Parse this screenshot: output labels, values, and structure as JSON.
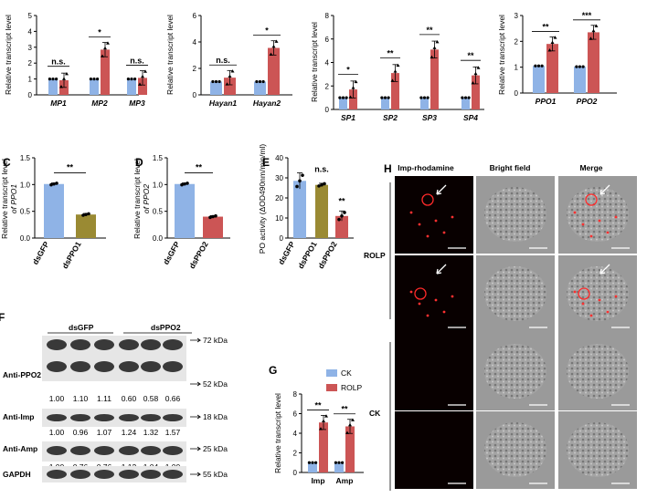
{
  "colors": {
    "blue": "#8fb3e6",
    "red": "#cc5555",
    "olive": "#9a8a33",
    "dark_olive": "#8a7a30"
  },
  "chart_data": [
    {
      "id": "mp",
      "type": "bar",
      "ylabel": "Relative transcript level",
      "yticks": [
        0,
        1,
        2,
        3,
        4,
        5
      ],
      "ylim": [
        0,
        5
      ],
      "categories": [
        "MP1",
        "MP2",
        "MP3"
      ],
      "series": [
        {
          "name": "CK",
          "values": [
            1.0,
            1.0,
            1.0
          ]
        },
        {
          "name": "ROLP",
          "values": [
            0.92,
            2.85,
            1.07
          ]
        }
      ],
      "sig": [
        "n.s.",
        "*",
        "n.s."
      ]
    },
    {
      "id": "hayan",
      "type": "bar",
      "ylabel": "Relative transcript level",
      "yticks": [
        0,
        2,
        4,
        6
      ],
      "ylim": [
        0,
        6
      ],
      "categories": [
        "Hayan1",
        "Hayan2"
      ],
      "series": [
        {
          "name": "CK",
          "values": [
            1.0,
            1.0
          ]
        },
        {
          "name": "ROLP",
          "values": [
            1.3,
            3.55
          ]
        }
      ],
      "sig": [
        "n.s.",
        "*"
      ]
    },
    {
      "id": "sp",
      "type": "bar",
      "ylabel": "Relative transcript level",
      "yticks": [
        0,
        2,
        4,
        6,
        8
      ],
      "ylim": [
        0,
        8
      ],
      "categories": [
        "SP1",
        "SP2",
        "SP3",
        "SP4"
      ],
      "series": [
        {
          "name": "CK",
          "values": [
            1.0,
            1.0,
            1.0,
            1.0
          ]
        },
        {
          "name": "ROLP",
          "values": [
            1.7,
            3.1,
            5.1,
            2.9
          ]
        }
      ],
      "sig": [
        "*",
        "**",
        "**",
        "**"
      ]
    },
    {
      "id": "ppo",
      "type": "bar",
      "ylabel": "Relative transcript level",
      "yticks": [
        0,
        1,
        2,
        3
      ],
      "ylim": [
        0,
        3
      ],
      "categories": [
        "PPO1",
        "PPO2"
      ],
      "series": [
        {
          "name": "CK",
          "values": [
            1.05,
            1.02
          ]
        },
        {
          "name": "ROLP",
          "values": [
            1.9,
            2.35
          ]
        }
      ],
      "sig": [
        "**",
        "***"
      ]
    },
    {
      "id": "c",
      "type": "bar",
      "label": "C",
      "ylabel": "Relative transcript level",
      "ylabel2": "of PPO1",
      "yticks": [
        0.0,
        0.5,
        1.0,
        1.5
      ],
      "ylim": [
        0,
        1.5
      ],
      "categories": [
        "dsGFP",
        "dsPPO1"
      ],
      "values": [
        1.01,
        0.44
      ],
      "sig": [
        "**"
      ]
    },
    {
      "id": "d",
      "type": "bar",
      "label": "D",
      "ylabel": "Relative transcript level",
      "ylabel2": "of PPO2",
      "yticks": [
        0.0,
        0.5,
        1.0,
        1.5
      ],
      "ylim": [
        0,
        1.5
      ],
      "categories": [
        "dsGFP",
        "dsPPO2"
      ],
      "values": [
        1.01,
        0.4
      ],
      "sig": [
        "**"
      ]
    },
    {
      "id": "e",
      "type": "bar",
      "label": "E",
      "ylabel": "PO activity (ΔOD490nm/min/ml)",
      "yticks": [
        0,
        10,
        20,
        30,
        40
      ],
      "ylim": [
        0,
        40
      ],
      "categories": [
        "dsGFP",
        "dsPPO1",
        "dsPPO2"
      ],
      "values": [
        28.5,
        26.5,
        11.0
      ],
      "sig": [
        "n.s.",
        "**"
      ]
    },
    {
      "id": "g",
      "type": "bar",
      "label": "G",
      "ylabel": "Relative transcript level",
      "yticks": [
        0,
        2,
        4,
        6,
        8
      ],
      "ylim": [
        0,
        8
      ],
      "categories": [
        "Imp",
        "Amp"
      ],
      "series": [
        {
          "name": "CK",
          "values": [
            1.0,
            1.0
          ]
        },
        {
          "name": "ROLP",
          "values": [
            5.1,
            4.7
          ]
        }
      ],
      "sig": [
        "**",
        "**"
      ],
      "legend": [
        "CK",
        "ROLP"
      ]
    }
  ],
  "western": {
    "label": "F",
    "groups": [
      "dsGFP",
      "dsPPO2"
    ],
    "bands": [
      {
        "name": "Anti-PPO2",
        "kda": [
          "72 kDa",
          "52 kDa"
        ],
        "values": [
          "1.00",
          "1.10",
          "1.11",
          "0.60",
          "0.58",
          "0.66"
        ]
      },
      {
        "name": "Anti-Imp",
        "kda": [
          "18 kDa"
        ],
        "values": [
          "1.00",
          "0.96",
          "1.07",
          "1.24",
          "1.32",
          "1.57"
        ]
      },
      {
        "name": "Anti-Amp",
        "kda": [
          "25 kDa"
        ],
        "values": [
          "1.00",
          "0.76",
          "0.76",
          "1.12",
          "1.04",
          "1.00"
        ]
      },
      {
        "name": "GAPDH",
        "kda": [
          "55 kDa"
        ],
        "values": []
      }
    ]
  },
  "micro": {
    "label": "H",
    "headers": [
      "Imp-rhodamine",
      "Bright field",
      "Merge"
    ],
    "groups": [
      "ROLP",
      "CK"
    ]
  }
}
